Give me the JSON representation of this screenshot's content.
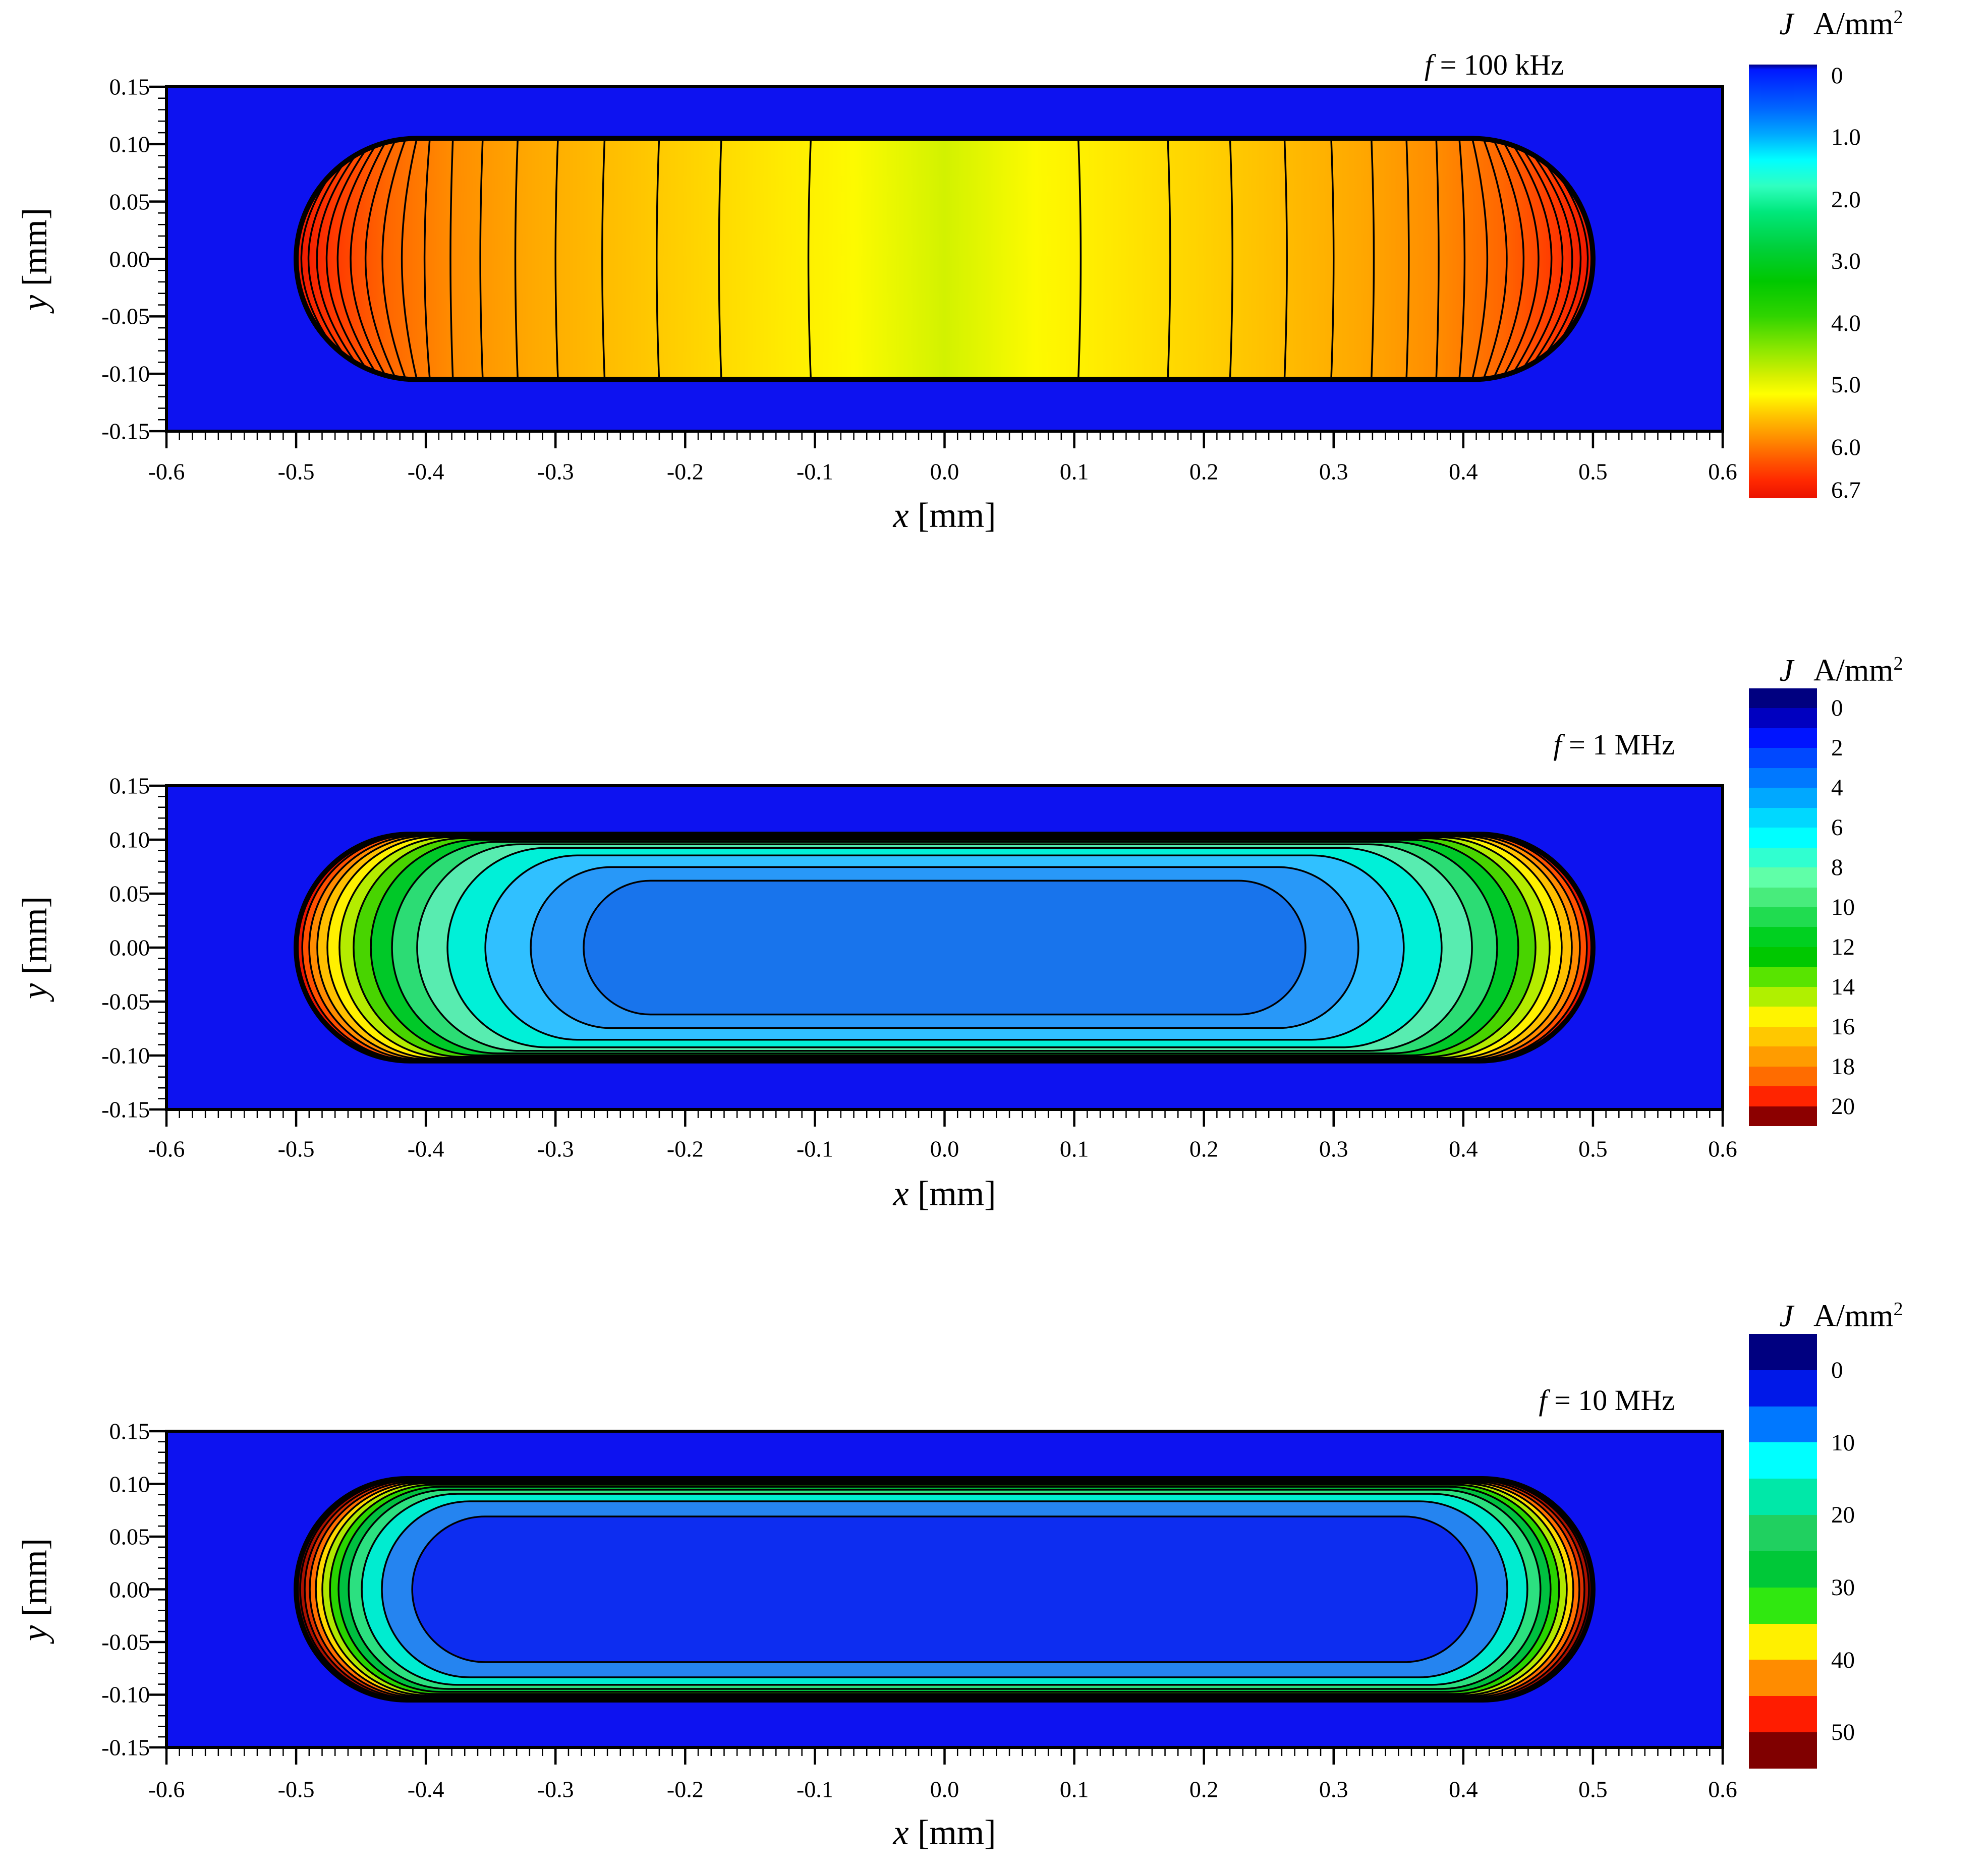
{
  "figure": {
    "panels": [
      {
        "id": "100khz",
        "freq_label": "f = 100 kHz"
      },
      {
        "id": "1mhz",
        "freq_label": "f = 1 MHz"
      },
      {
        "id": "10mhz",
        "freq_label": "f = 10 MHz"
      }
    ],
    "axes": {
      "x_label": "x [mm]",
      "y_label": "y [mm]",
      "x_ticks": [
        "-0.6",
        "-0.5",
        "-0.4",
        "-0.3",
        "-0.2",
        "-0.1",
        "0.0",
        "0.1",
        "0.2",
        "0.3",
        "0.4",
        "0.5",
        "0.6"
      ],
      "y_ticks": [
        "0.15",
        "0.10",
        "0.05",
        "0.00",
        "-0.05",
        "-0.10",
        "-0.15"
      ]
    },
    "colorbar": {
      "symbol": "J",
      "unit": "A/mm",
      "unit_sup": "2"
    }
  },
  "chart_data": [
    {
      "type": "contour",
      "title": "f = 100 kHz",
      "xlabel": "x [mm]",
      "ylabel": "y [mm]",
      "xlim": [
        -0.6,
        0.6
      ],
      "ylim": [
        -0.15,
        0.15
      ],
      "conductor": {
        "x_half_mm": 0.5,
        "y_half_mm": 0.105
      },
      "J_unit": "A/mm2",
      "J_min": 0,
      "J_max": 6.7,
      "J_center": 4.6,
      "J_edge": 6.7,
      "colors": {
        "background": "#0d12f0"
      },
      "render": {
        "mode": "gradient",
        "gradient_stops": [
          [
            0,
            "#ee1600"
          ],
          [
            0.03,
            "#ff3a00"
          ],
          [
            0.07,
            "#ff6600"
          ],
          [
            0.12,
            "#ff8c00"
          ],
          [
            0.18,
            "#ffa800"
          ],
          [
            0.25,
            "#ffc000"
          ],
          [
            0.32,
            "#ffd800"
          ],
          [
            0.38,
            "#ffec00"
          ],
          [
            0.43,
            "#fdfa00"
          ],
          [
            0.47,
            "#e4f600"
          ],
          [
            0.5,
            "#d2f200"
          ],
          [
            0.53,
            "#e4f600"
          ],
          [
            0.57,
            "#fdfa00"
          ],
          [
            0.62,
            "#ffec00"
          ],
          [
            0.68,
            "#ffd800"
          ],
          [
            0.75,
            "#ffc000"
          ],
          [
            0.82,
            "#ffa800"
          ],
          [
            0.88,
            "#ff8c00"
          ],
          [
            0.93,
            "#ff6600"
          ],
          [
            0.97,
            "#ff3a00"
          ],
          [
            1,
            "#ee1600"
          ]
        ],
        "contour_x_mm": [
          -0.496,
          -0.4905,
          -0.484,
          -0.4765,
          -0.468,
          -0.458,
          -0.4465,
          -0.4335,
          -0.4185,
          -0.401,
          -0.381,
          -0.358,
          -0.331,
          -0.3,
          -0.264,
          -0.222,
          -0.174,
          -0.105
        ]
      },
      "colorbar": {
        "ticks": [
          "0",
          "1.0",
          "2.0",
          "3.0",
          "4.0",
          "5.0",
          "6.0",
          "6.7"
        ],
        "vmin": 0,
        "vmax": 6.7,
        "gradient_stops": [
          [
            0,
            "#000080"
          ],
          [
            0.012,
            "#0018ff"
          ],
          [
            0.1,
            "#0064ff"
          ],
          [
            0.16,
            "#00a8ff"
          ],
          [
            0.22,
            "#00ffff"
          ],
          [
            0.28,
            "#30ffc0"
          ],
          [
            0.34,
            "#00e87c"
          ],
          [
            0.42,
            "#00d03c"
          ],
          [
            0.5,
            "#00c800"
          ],
          [
            0.58,
            "#30d400"
          ],
          [
            0.66,
            "#90e800"
          ],
          [
            0.72,
            "#d8f000"
          ],
          [
            0.76,
            "#ffff00"
          ],
          [
            0.81,
            "#ffc400"
          ],
          [
            0.86,
            "#ff9000"
          ],
          [
            0.91,
            "#ff5a00"
          ],
          [
            0.96,
            "#ff2800"
          ],
          [
            1,
            "#ea1200"
          ]
        ]
      }
    },
    {
      "type": "contour",
      "title": "f = 1 MHz",
      "xlabel": "x [mm]",
      "ylabel": "y [mm]",
      "xlim": [
        -0.6,
        0.6
      ],
      "ylim": [
        -0.15,
        0.15
      ],
      "conductor": {
        "x_half_mm": 0.5,
        "y_half_mm": 0.105
      },
      "J_unit": "A/mm2",
      "J_min": 0,
      "J_max": 20,
      "J_center": 2,
      "J_edge": 20,
      "colors": {
        "background": "#0d12f0"
      },
      "render": {
        "mode": "rings",
        "colors": [
          "#e81400",
          "#ff5000",
          "#ff8c00",
          "#ffc000",
          "#fff000",
          "#b4ec00",
          "#48d400",
          "#00c828",
          "#2cdc74",
          "#58ecb0",
          "#00f0d8",
          "#30c0ff",
          "#2898f8",
          "#1874ec"
        ],
        "dx_mm": [
          0.0047,
          0.0101,
          0.0163,
          0.0241,
          0.0334,
          0.0443,
          0.0576,
          0.0739,
          0.0933,
          0.1167,
          0.1459,
          0.1809,
          0.2217
        ],
        "dy_mm": [
          0.0005,
          0.0009,
          0.0014,
          0.0019,
          0.0028,
          0.0037,
          0.0051,
          0.007,
          0.0093,
          0.0126,
          0.0196,
          0.0304,
          0.043
        ]
      },
      "colorbar": {
        "ticks": [
          "0",
          "2",
          "4",
          "6",
          "8",
          "10",
          "12",
          "14",
          "16",
          "18",
          "20"
        ],
        "vmin": 0,
        "vmax": 20,
        "band_colors": [
          "#000080",
          "#0000c0",
          "#0014ff",
          "#0048ff",
          "#0078ff",
          "#00a8ff",
          "#00d8ff",
          "#00ffff",
          "#30ffd0",
          "#60ffa8",
          "#48ec7c",
          "#20dc50",
          "#00d020",
          "#00c800",
          "#58e400",
          "#b0f000",
          "#fff400",
          "#ffc800",
          "#ff9c00",
          "#ff6c00",
          "#ff2400",
          "#8c0000"
        ]
      }
    },
    {
      "type": "contour",
      "title": "f = 10 MHz",
      "xlabel": "x [mm]",
      "ylabel": "y [mm]",
      "xlim": [
        -0.6,
        0.6
      ],
      "ylim": [
        -0.15,
        0.15
      ],
      "conductor": {
        "x_half_mm": 0.5,
        "y_half_mm": 0.105
      },
      "J_unit": "A/mm2",
      "J_min": 0,
      "J_max": 50,
      "J_center": 0,
      "J_edge": 50,
      "colors": {
        "background": "#0d12f0"
      },
      "render": {
        "mode": "rings",
        "colors": [
          "#7a0000",
          "#aa1000",
          "#d83000",
          "#ff7000",
          "#ffd800",
          "#b0e800",
          "#28d400",
          "#00c040",
          "#2ce080",
          "#00ecd0",
          "#2584f0",
          "#0d2df0"
        ],
        "dx_mm": [
          0.0031,
          0.0066,
          0.0105,
          0.0152,
          0.0202,
          0.0261,
          0.0327,
          0.0405,
          0.0506,
          0.0661,
          0.0895
        ],
        "dy_mm": [
          0.0007,
          0.0014,
          0.0024,
          0.0033,
          0.0043,
          0.0057,
          0.0077,
          0.0105,
          0.0144,
          0.0215,
          0.0359
        ]
      },
      "colorbar": {
        "ticks": [
          "0",
          "10",
          "20",
          "30",
          "40",
          "50"
        ],
        "vmin": 0,
        "vmax": 50,
        "band_colors": [
          "#000080",
          "#0018e8",
          "#0078ff",
          "#00ffff",
          "#00e8a8",
          "#20d060",
          "#00c838",
          "#30e810",
          "#fff000",
          "#ff8c00",
          "#ff1c00",
          "#800000"
        ]
      }
    }
  ]
}
